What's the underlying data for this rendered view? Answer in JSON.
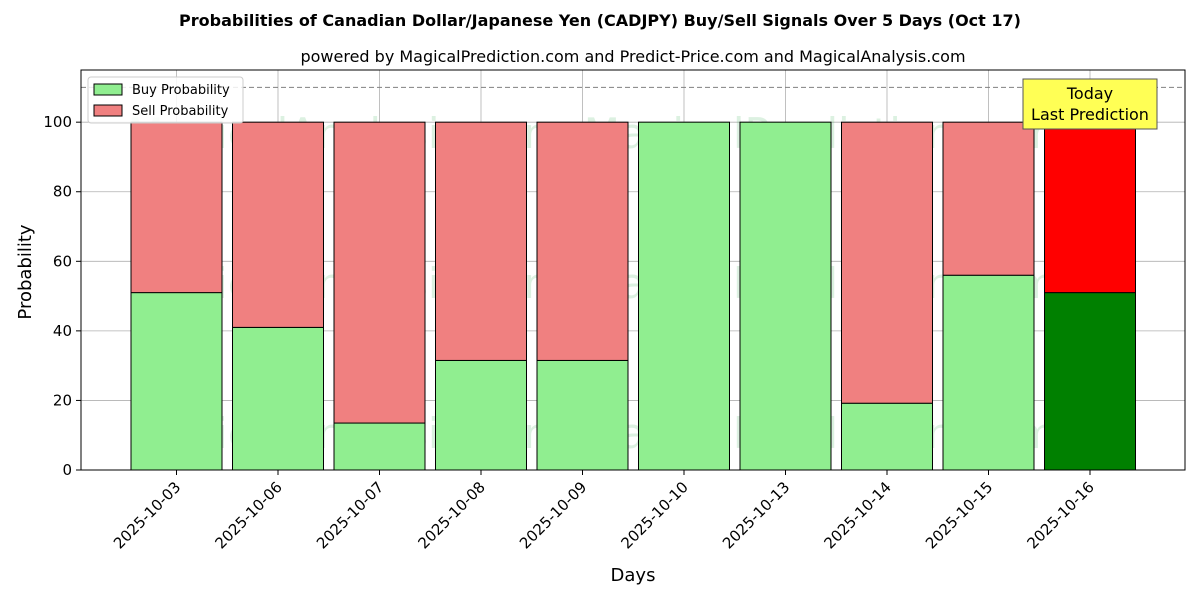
{
  "chart_data": {
    "type": "bar",
    "stacked": true,
    "title": "Probabilities of Canadian Dollar/Japanese Yen (CADJPY) Buy/Sell Signals Over 5 Days (Oct 17)",
    "subtitle": "powered by MagicalPrediction.com and Predict-Price.com and MagicalAnalysis.com",
    "xlabel": "Days",
    "ylabel": "Probability",
    "ylim": [
      0,
      115
    ],
    "yticks": [
      0,
      20,
      40,
      60,
      80,
      100
    ],
    "grid": true,
    "reference_line": 110,
    "legend_position": "top-left",
    "categories": [
      "2025-10-03",
      "2025-10-06",
      "2025-10-07",
      "2025-10-08",
      "2025-10-09",
      "2025-10-10",
      "2025-10-13",
      "2025-10-14",
      "2025-10-15",
      "2025-10-16"
    ],
    "series": [
      {
        "name": "Buy Probability",
        "values": [
          51,
          41,
          13.5,
          31.5,
          31.5,
          100,
          100,
          19.2,
          56,
          51
        ],
        "color": "#90ee90",
        "highlight_color": "#008000"
      },
      {
        "name": "Sell Probability",
        "values": [
          49,
          59,
          86.5,
          68.5,
          68.5,
          0,
          0,
          80.8,
          44,
          49
        ],
        "color": "#f08080",
        "highlight_color": "#ff0000"
      }
    ],
    "highlight_index": 9,
    "annotation": {
      "lines": [
        "Today",
        "Last Prediction"
      ],
      "color": "#ffff55"
    },
    "watermarks": [
      "MagicalAnalysis.com",
      "MagicalPrediction.com"
    ]
  }
}
